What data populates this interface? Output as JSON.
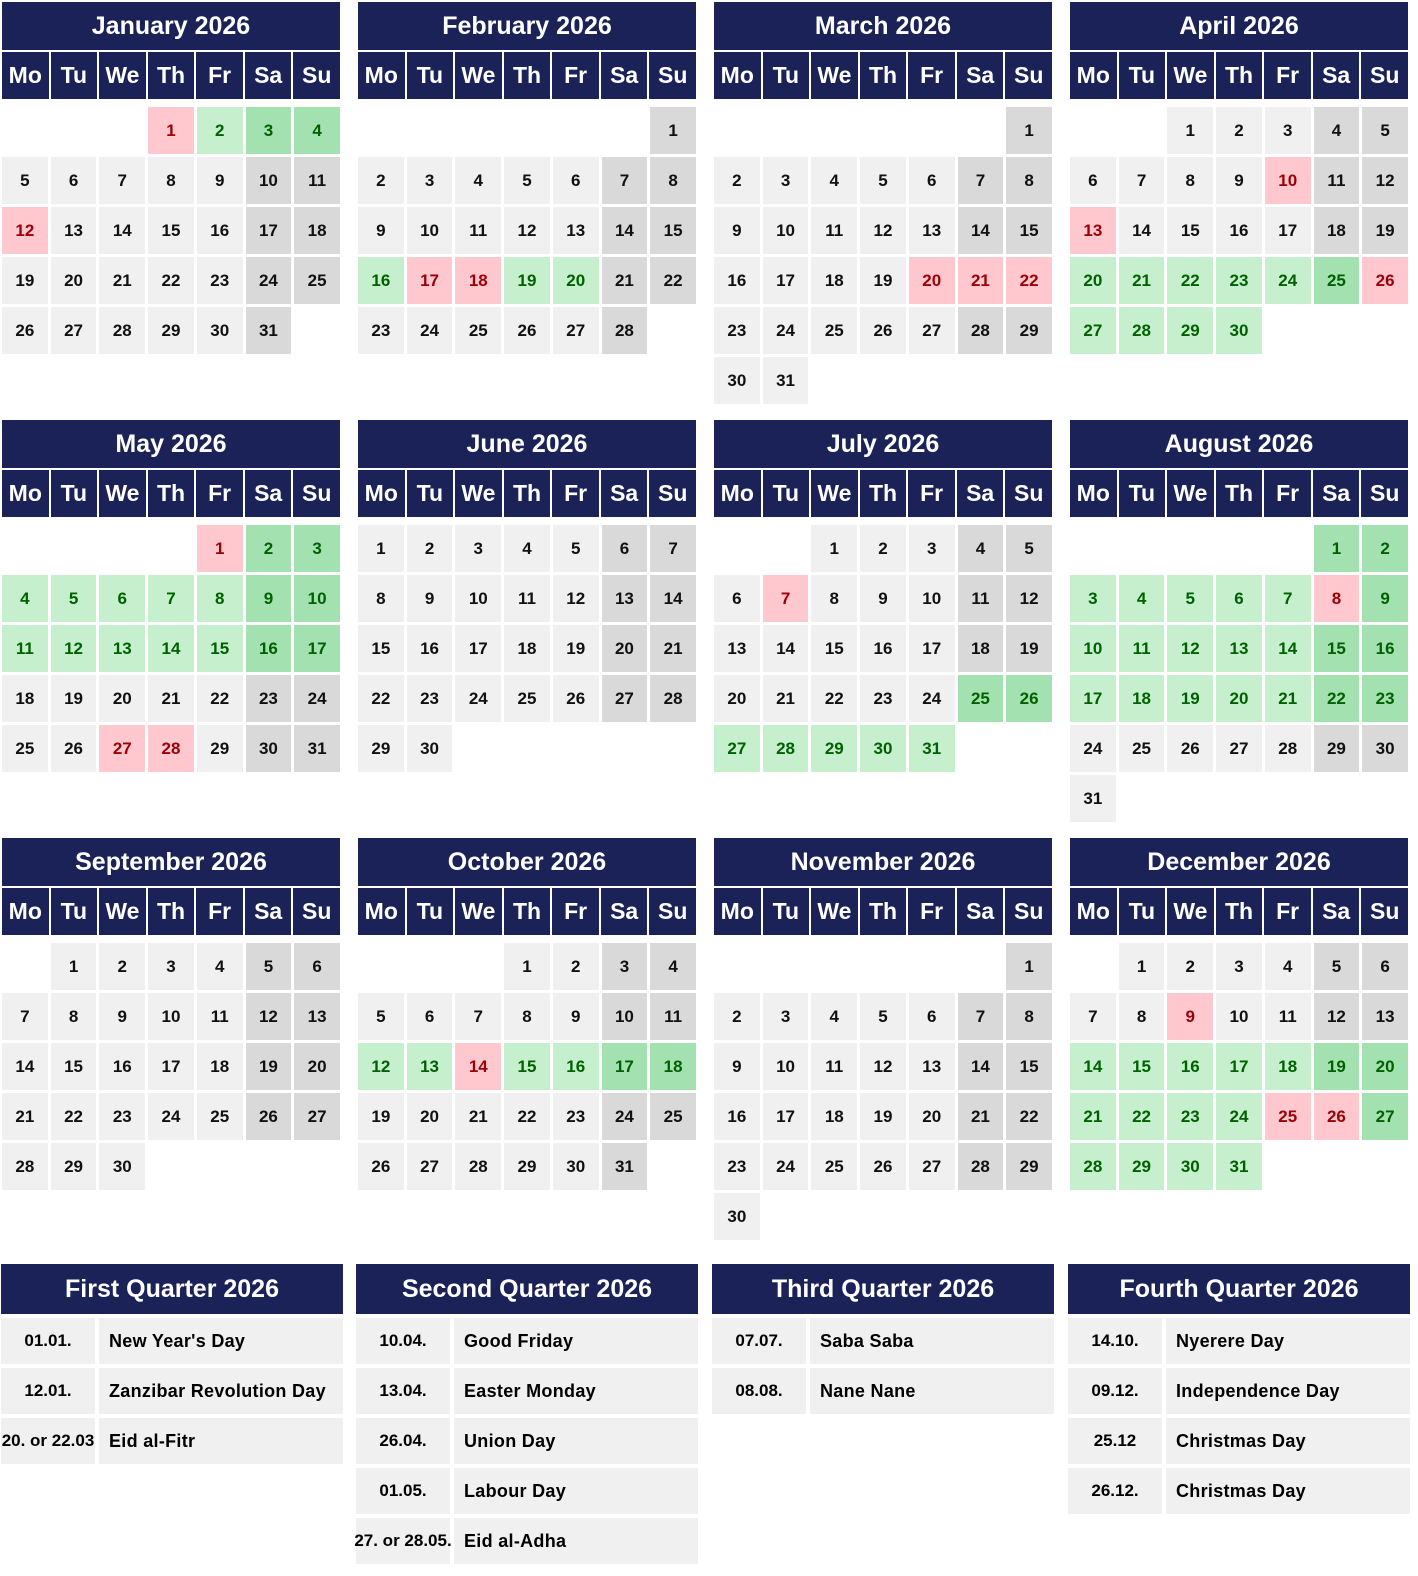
{
  "weekdays": [
    "Mo",
    "Tu",
    "We",
    "Th",
    "Fr",
    "Sa",
    "Su"
  ],
  "colors": {
    "header": "#1a2257",
    "normal": "#f0f0f0",
    "weekend": "#d9d9d9",
    "holiday": "#ffc7ce",
    "holiday_text": "#9c0006",
    "vacation": "#c6efce",
    "vacation_weekend": "#a3e2b0",
    "vacation_text": "#006100"
  },
  "months": [
    {
      "title": "January 2026",
      "first_weekday": "Th",
      "days": 31,
      "marked": {
        "1": "h",
        "2": "v",
        "3": "vw",
        "4": "vw",
        "12": "h"
      }
    },
    {
      "title": "February 2026",
      "first_weekday": "Su",
      "days": 28,
      "marked": {
        "16": "v",
        "17": "h",
        "18": "h",
        "19": "v",
        "20": "v"
      }
    },
    {
      "title": "March 2026",
      "first_weekday": "Su",
      "days": 31,
      "marked": {
        "20": "h",
        "21": "h",
        "22": "h"
      }
    },
    {
      "title": "April 2026",
      "first_weekday": "We",
      "days": 30,
      "marked": {
        "10": "h",
        "13": "h",
        "20": "v",
        "21": "v",
        "22": "v",
        "23": "v",
        "24": "v",
        "25": "vw",
        "26": "h",
        "27": "v",
        "28": "v",
        "29": "v",
        "30": "v"
      }
    },
    {
      "title": "May 2026",
      "first_weekday": "Fr",
      "days": 31,
      "marked": {
        "1": "h",
        "2": "vw",
        "3": "vw",
        "4": "v",
        "5": "v",
        "6": "v",
        "7": "v",
        "8": "v",
        "9": "vw",
        "10": "vw",
        "11": "v",
        "12": "v",
        "13": "v",
        "14": "v",
        "15": "v",
        "16": "vw",
        "17": "vw",
        "27": "h",
        "28": "h"
      }
    },
    {
      "title": "June 2026",
      "first_weekday": "Mo",
      "days": 30,
      "marked": {}
    },
    {
      "title": "July 2026",
      "first_weekday": "We",
      "days": 31,
      "marked": {
        "7": "h",
        "25": "vw",
        "26": "vw",
        "27": "v",
        "28": "v",
        "29": "v",
        "30": "v",
        "31": "v"
      }
    },
    {
      "title": "August 2026",
      "first_weekday": "Sa",
      "days": 31,
      "marked": {
        "1": "vw",
        "2": "vw",
        "3": "v",
        "4": "v",
        "5": "v",
        "6": "v",
        "7": "v",
        "8": "h",
        "9": "vw",
        "10": "v",
        "11": "v",
        "12": "v",
        "13": "v",
        "14": "v",
        "15": "vw",
        "16": "vw",
        "17": "v",
        "18": "v",
        "19": "v",
        "20": "v",
        "21": "v",
        "22": "vw",
        "23": "vw"
      }
    },
    {
      "title": "September 2026",
      "first_weekday": "Tu",
      "days": 30,
      "marked": {}
    },
    {
      "title": "October 2026",
      "first_weekday": "Th",
      "days": 31,
      "marked": {
        "12": "v",
        "13": "v",
        "14": "h",
        "15": "v",
        "16": "v",
        "17": "vw",
        "18": "vw"
      }
    },
    {
      "title": "November 2026",
      "first_weekday": "Su",
      "days": 30,
      "marked": {}
    },
    {
      "title": "December 2026",
      "first_weekday": "Tu",
      "days": 31,
      "marked": {
        "9": "h",
        "14": "v",
        "15": "v",
        "16": "v",
        "17": "v",
        "18": "v",
        "19": "vw",
        "20": "vw",
        "21": "v",
        "22": "v",
        "23": "v",
        "24": "v",
        "25": "h",
        "26": "h",
        "27": "vw",
        "28": "v",
        "29": "v",
        "30": "v",
        "31": "v"
      }
    }
  ],
  "quarters": [
    {
      "title": "First Quarter 2026",
      "holidays": [
        {
          "date": "01.01.",
          "name": "New Year's Day"
        },
        {
          "date": "12.01.",
          "name": "Zanzibar Revolution Day"
        },
        {
          "date": "20. or 22.03",
          "name": "Eid al-Fitr"
        }
      ]
    },
    {
      "title": "Second Quarter 2026",
      "holidays": [
        {
          "date": "10.04.",
          "name": "Good Friday"
        },
        {
          "date": "13.04.",
          "name": "Easter Monday"
        },
        {
          "date": "26.04.",
          "name": "Union Day"
        },
        {
          "date": "01.05.",
          "name": "Labour Day"
        },
        {
          "date": "27. or 28.05.",
          "name": "Eid al-Adha"
        }
      ]
    },
    {
      "title": "Third Quarter 2026",
      "holidays": [
        {
          "date": "07.07.",
          "name": "Saba Saba"
        },
        {
          "date": "08.08.",
          "name": "Nane Nane"
        }
      ]
    },
    {
      "title": "Fourth Quarter 2026",
      "holidays": [
        {
          "date": "14.10.",
          "name": "Nyerere Day"
        },
        {
          "date": "09.12.",
          "name": "Independence Day"
        },
        {
          "date": "25.12",
          "name": "Christmas Day"
        },
        {
          "date": "26.12.",
          "name": "Christmas Day"
        }
      ]
    }
  ]
}
